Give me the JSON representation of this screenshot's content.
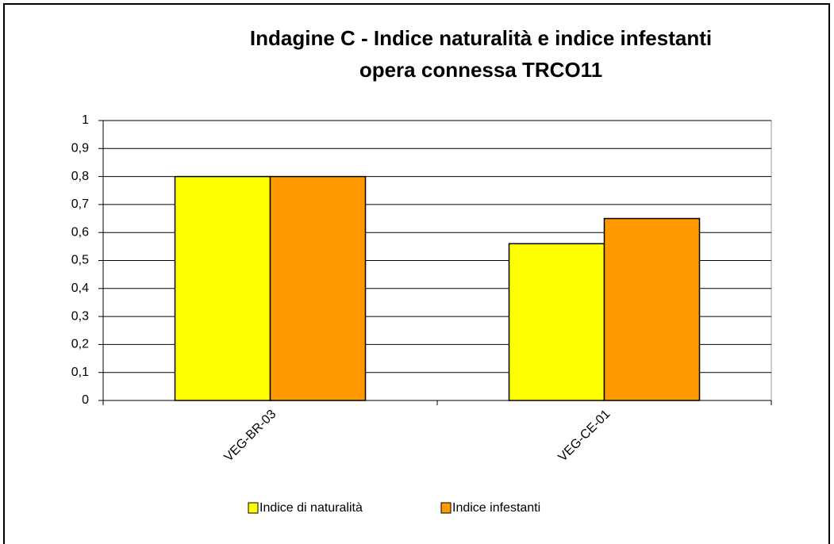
{
  "chart_data": {
    "type": "bar",
    "title": [
      "Indagine C - Indice naturalità e indice infestanti",
      "opera connessa TRCO11"
    ],
    "categories": [
      "VEG-BR-03",
      "VEG-CE-01"
    ],
    "series": [
      {
        "name": "Indice di naturalità",
        "color": "#ffff00",
        "values": [
          0.8,
          0.56
        ]
      },
      {
        "name": "Indice infestanti",
        "color": "#ff9900",
        "values": [
          0.8,
          0.65
        ]
      }
    ],
    "ylim": [
      0,
      1
    ],
    "yticks": [
      0,
      {
        "value": 0.1,
        "label": "0,1"
      },
      {
        "value": 0.2,
        "label": "0,2"
      },
      {
        "value": 0.3,
        "label": "0,3"
      },
      {
        "value": 0.4,
        "label": "0,4"
      },
      {
        "value": 0.5,
        "label": "0,5"
      },
      {
        "value": 0.6,
        "label": "0,6"
      },
      {
        "value": 0.7,
        "label": "0,7"
      },
      {
        "value": 0.8,
        "label": "0,8"
      },
      {
        "value": 0.9,
        "label": "0,9"
      },
      1
    ],
    "grid": true,
    "legend": "bottom"
  }
}
